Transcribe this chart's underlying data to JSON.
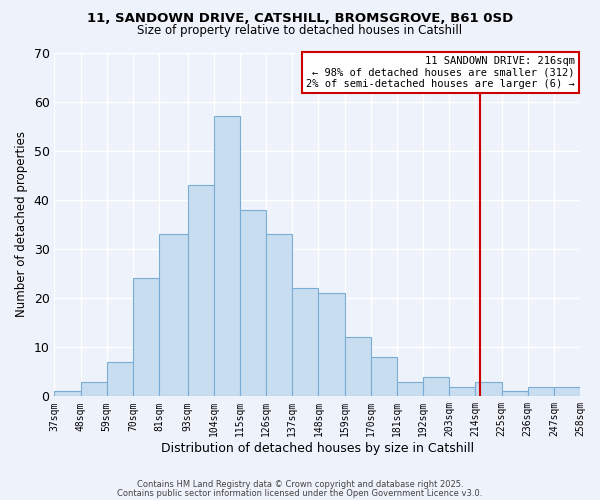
{
  "title1": "11, SANDOWN DRIVE, CATSHILL, BROMSGROVE, B61 0SD",
  "title2": "Size of property relative to detached houses in Catshill",
  "xlabel": "Distribution of detached houses by size in Catshill",
  "ylabel": "Number of detached properties",
  "bar_color": "#c8ddf0",
  "bar_edge_color": "#7aadd4",
  "background_color": "#eef2fa",
  "grid_color": "#ffffff",
  "bins": [
    37,
    48,
    59,
    70,
    81,
    93,
    104,
    115,
    126,
    137,
    148,
    159,
    170,
    181,
    192,
    203,
    214,
    225,
    236,
    247,
    258
  ],
  "counts": [
    1,
    3,
    7,
    24,
    33,
    43,
    57,
    38,
    33,
    22,
    21,
    12,
    8,
    3,
    4,
    2,
    3,
    1,
    2,
    2
  ],
  "tick_labels": [
    "37sqm",
    "48sqm",
    "59sqm",
    "70sqm",
    "81sqm",
    "93sqm",
    "104sqm",
    "115sqm",
    "126sqm",
    "137sqm",
    "148sqm",
    "159sqm",
    "170sqm",
    "181sqm",
    "192sqm",
    "203sqm",
    "214sqm",
    "225sqm",
    "236sqm",
    "247sqm",
    "258sqm"
  ],
  "vline_x": 216,
  "vline_color": "#cc0000",
  "annotation_box_text": "11 SANDOWN DRIVE: 216sqm\n← 98% of detached houses are smaller (312)\n2% of semi-detached houses are larger (6) →",
  "annotation_fontsize": 7.5,
  "ylim": [
    0,
    70
  ],
  "yticks": [
    0,
    10,
    20,
    30,
    40,
    50,
    60,
    70
  ],
  "footer1": "Contains HM Land Registry data © Crown copyright and database right 2025.",
  "footer2": "Contains public sector information licensed under the Open Government Licence v3.0."
}
